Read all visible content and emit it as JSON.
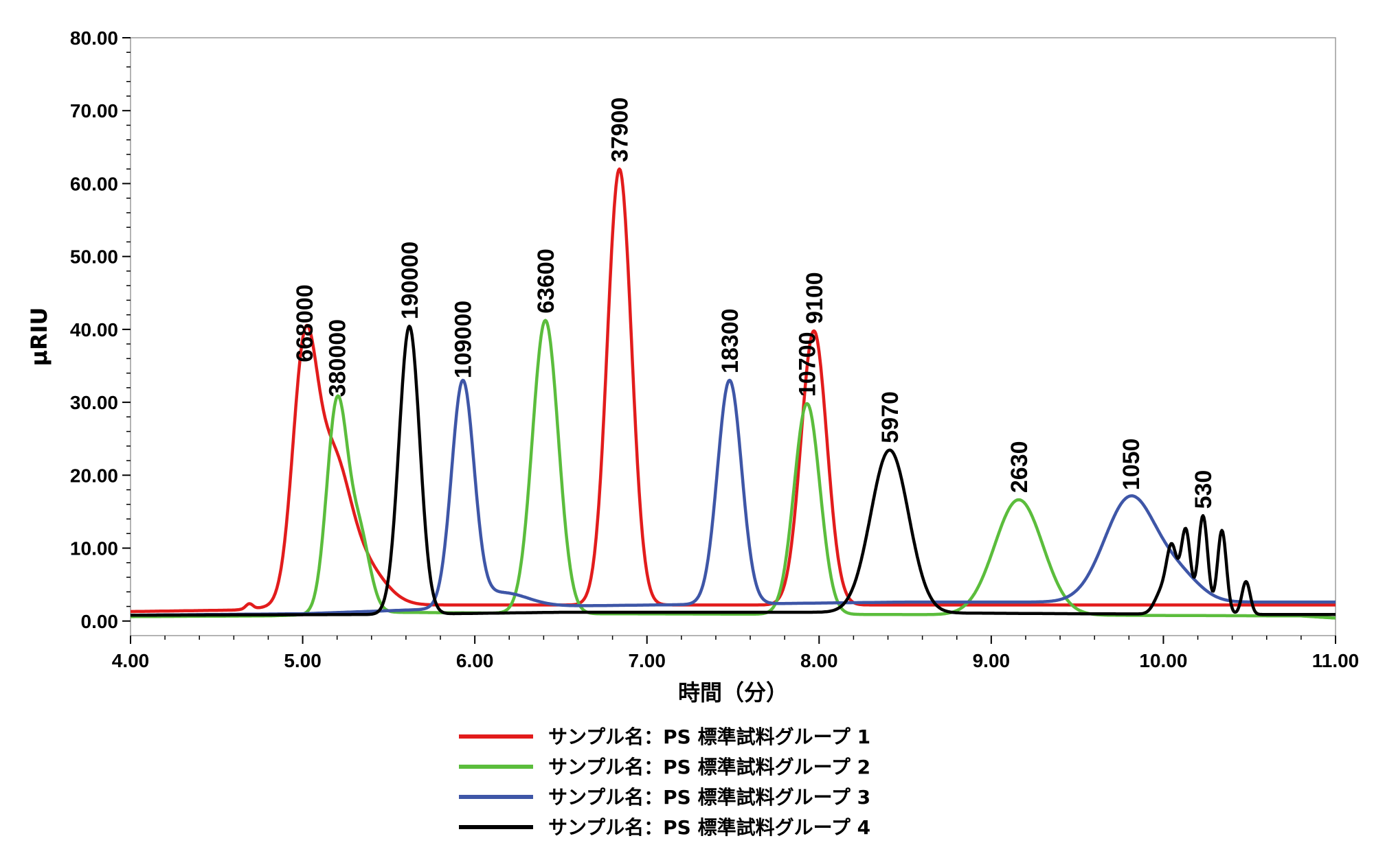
{
  "chart_data": {
    "type": "line",
    "xlabel": "時間（分）",
    "ylabel": "μRIU",
    "xlim": [
      4.0,
      11.0
    ],
    "ylim": [
      -2.0,
      80.0
    ],
    "x_ticks": [
      "4.00",
      "5.00",
      "6.00",
      "7.00",
      "8.00",
      "9.00",
      "10.00",
      "11.00"
    ],
    "y_ticks": [
      "0.00",
      "10.00",
      "20.00",
      "30.00",
      "40.00",
      "50.00",
      "60.00",
      "70.00",
      "80.00"
    ],
    "legend_position": "bottom-center",
    "series": [
      {
        "name": "サンプル名：PS 標準試料グループ 1",
        "color": "#e21c1c",
        "baseline": [
          [
            4.0,
            1.3
          ],
          [
            4.6,
            1.5
          ],
          [
            4.85,
            2.0
          ],
          [
            5.6,
            2.2
          ],
          [
            11.0,
            2.2
          ]
        ],
        "peaks": [
          {
            "label": "668000",
            "x": 5.01,
            "y": 32.5,
            "width": 0.07
          },
          {
            "label": "",
            "x": 5.17,
            "y": 19.0,
            "width": 0.1
          },
          {
            "label": "",
            "x": 5.36,
            "y": 5.0,
            "width": 0.12
          },
          {
            "label": "",
            "x": 4.69,
            "y": 0.7,
            "width": 0.02
          },
          {
            "label": "37900",
            "x": 6.84,
            "y": 59.8,
            "width": 0.07
          },
          {
            "label": "9100",
            "x": 7.97,
            "y": 37.6,
            "width": 0.075
          }
        ]
      },
      {
        "name": "サンプル名：PS 標準試料グループ 2",
        "color": "#5bbd3c",
        "baseline": [
          [
            4.0,
            0.6
          ],
          [
            4.8,
            0.7
          ],
          [
            5.5,
            1.2
          ],
          [
            6.6,
            1.0
          ],
          [
            8.3,
            0.9
          ],
          [
            10.8,
            0.7
          ],
          [
            11.0,
            0.4
          ]
        ],
        "peaks": [
          {
            "label": "380000",
            "x": 5.2,
            "y": 28.8,
            "width": 0.06
          },
          {
            "label": "",
            "x": 5.33,
            "y": 10.5,
            "width": 0.06
          },
          {
            "label": "63600",
            "x": 6.41,
            "y": 40.2,
            "width": 0.075
          },
          {
            "label": "10700",
            "x": 7.93,
            "y": 28.9,
            "width": 0.075
          },
          {
            "label": "2630",
            "x": 9.16,
            "y": 15.8,
            "width": 0.14
          }
        ]
      },
      {
        "name": "サンプル名：PS 標準試料グループ 3",
        "color": "#3e56a7",
        "baseline": [
          [
            4.0,
            0.8
          ],
          [
            5.0,
            1.0
          ],
          [
            5.6,
            1.5
          ],
          [
            6.3,
            2.0
          ],
          [
            8.5,
            2.6
          ],
          [
            11.0,
            2.6
          ]
        ],
        "peaks": [
          {
            "label": "109000",
            "x": 5.93,
            "y": 30.6,
            "width": 0.065
          },
          {
            "label": "",
            "x": 6.15,
            "y": 2.0,
            "width": 0.15
          },
          {
            "label": "18300",
            "x": 7.48,
            "y": 30.7,
            "width": 0.07
          },
          {
            "label": "1050",
            "x": 9.81,
            "y": 14.4,
            "width": 0.15
          },
          {
            "label": "",
            "x": 10.1,
            "y": 3.0,
            "width": 0.12
          }
        ]
      },
      {
        "name": "サンプル名：PS 標準試料グループ 4",
        "color": "#000000",
        "baseline": [
          [
            4.0,
            0.8
          ],
          [
            5.5,
            0.9
          ],
          [
            6.5,
            1.2
          ],
          [
            8.0,
            1.2
          ],
          [
            9.5,
            1.0
          ],
          [
            10.6,
            0.9
          ],
          [
            11.0,
            0.9
          ]
        ],
        "peaks": [
          {
            "label": "190000",
            "x": 5.62,
            "y": 39.5,
            "width": 0.06
          },
          {
            "label": "5970",
            "x": 8.41,
            "y": 22.3,
            "width": 0.11
          },
          {
            "label": "",
            "x": 9.99,
            "y": 3.0,
            "width": 0.04
          },
          {
            "label": "",
            "x": 10.05,
            "y": 8.5,
            "width": 0.03
          },
          {
            "label": "",
            "x": 10.13,
            "y": 11.5,
            "width": 0.028
          },
          {
            "label": "530",
            "x": 10.23,
            "y": 13.5,
            "width": 0.028
          },
          {
            "label": "",
            "x": 10.34,
            "y": 11.5,
            "width": 0.026
          },
          {
            "label": "",
            "x": 10.48,
            "y": 4.5,
            "width": 0.024
          }
        ]
      }
    ]
  }
}
